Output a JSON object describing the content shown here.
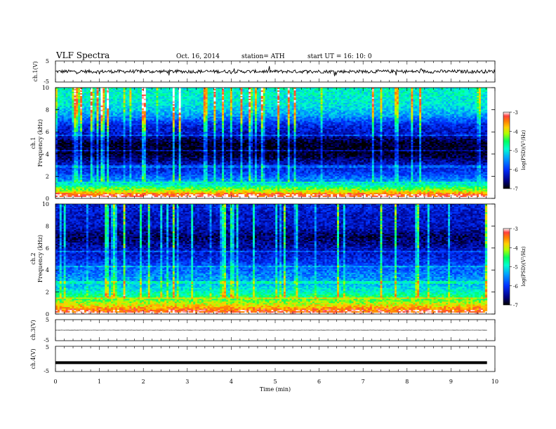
{
  "header": {
    "title": "VLF  Spectra",
    "date": "Oct. 16, 2014",
    "station": "station= ATH",
    "start": "start  UT  =    16: 10: 0"
  },
  "colorbar": {
    "label": "log(PSD)(V²/Hz)",
    "ticks": [
      "-3",
      "-4",
      "-5",
      "-6",
      "-7"
    ],
    "colors": [
      "#ffffff",
      "#ff4040",
      "#ff8000",
      "#ffd000",
      "#b0ff00",
      "#00ff60",
      "#00ffd0",
      "#00a0ff",
      "#0030ff",
      "#000080",
      "#000000"
    ]
  },
  "chart_data": [
    {
      "type": "line",
      "id": "ch1-waveform",
      "ylabel": "ch.1(V)",
      "ylim": [
        -5,
        5
      ],
      "yticks": [
        "5",
        "-5"
      ],
      "xlim": [
        0,
        10
      ],
      "baseline": 0,
      "noise_amplitude": 0.8,
      "color": "#000000"
    },
    {
      "type": "heatmap",
      "id": "ch1-spectrogram",
      "ylabel": "ch.1\nFrequency (kHz)",
      "ylim": [
        0,
        10
      ],
      "yticks": [
        "0",
        "2",
        "4",
        "6",
        "8",
        "10"
      ],
      "xlim": [
        0,
        9.82
      ],
      "zlim": [
        -7,
        -3
      ],
      "z_label": "log(PSD)(V²/Hz)",
      "profile": [
        {
          "f": 0.3,
          "z": -3.2
        },
        {
          "f": 0.6,
          "z": -3.9
        },
        {
          "f": 1.0,
          "z": -4.5
        },
        {
          "f": 1.5,
          "z": -5.4
        },
        {
          "f": 2.2,
          "z": -5.9
        },
        {
          "f": 3.0,
          "z": -6.3
        },
        {
          "f": 4.0,
          "z": -6.9
        },
        {
          "f": 5.0,
          "z": -6.9
        },
        {
          "f": 5.8,
          "z": -6.3
        },
        {
          "f": 6.5,
          "z": -6.2
        },
        {
          "f": 7.5,
          "z": -5.4
        },
        {
          "f": 8.5,
          "z": -5.0
        },
        {
          "f": 10.0,
          "z": -4.9
        }
      ]
    },
    {
      "type": "heatmap",
      "id": "ch2-spectrogram",
      "ylabel": "ch.2\nFrequency (kHz)",
      "ylim": [
        0,
        10
      ],
      "yticks": [
        "0",
        "2",
        "4",
        "6",
        "8",
        "10"
      ],
      "xlim": [
        0,
        9.82
      ],
      "zlim": [
        -7,
        -3
      ],
      "z_label": "log(PSD)(V²/Hz)",
      "profile": [
        {
          "f": 0.3,
          "z": -3.3
        },
        {
          "f": 0.8,
          "z": -3.9
        },
        {
          "f": 1.4,
          "z": -4.4
        },
        {
          "f": 2.2,
          "z": -5.0
        },
        {
          "f": 3.0,
          "z": -5.4
        },
        {
          "f": 4.0,
          "z": -5.7
        },
        {
          "f": 5.0,
          "z": -6.1
        },
        {
          "f": 6.0,
          "z": -6.4
        },
        {
          "f": 7.0,
          "z": -6.7
        },
        {
          "f": 8.0,
          "z": -6.3
        },
        {
          "f": 9.0,
          "z": -6.3
        },
        {
          "f": 10.0,
          "z": -6.1
        }
      ]
    },
    {
      "type": "line",
      "id": "ch3-waveform",
      "ylabel": "ch.3(V)",
      "ylim": [
        -5,
        5
      ],
      "yticks": [
        "5",
        "-5"
      ],
      "xlim": [
        0,
        9.82
      ],
      "baseline": 0,
      "noise_amplitude": 0.05,
      "color": "#000000"
    },
    {
      "type": "line",
      "id": "ch4-waveform",
      "ylabel": "ch.4(V)",
      "ylim": [
        -5,
        5
      ],
      "yticks": [
        "5",
        "-5"
      ],
      "xlim": [
        0,
        9.82
      ],
      "baseline": -1.5,
      "noise_amplitude": 0.0,
      "color": "#000000"
    }
  ],
  "xaxis": {
    "label": "Time  (min)",
    "ticks": [
      "0",
      "1",
      "2",
      "3",
      "4",
      "5",
      "6",
      "7",
      "8",
      "9",
      "10"
    ],
    "xlim": [
      0,
      10
    ]
  }
}
